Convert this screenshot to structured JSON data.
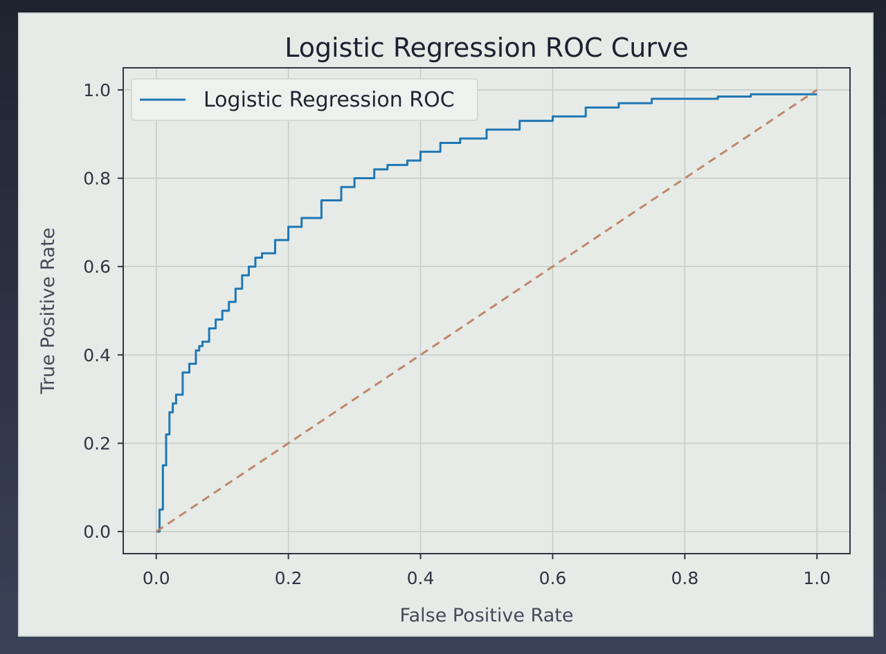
{
  "chart_data": {
    "type": "line",
    "title": "Logistic Regression ROC Curve",
    "xlabel": "False Positive Rate",
    "ylabel": "True Positive Rate",
    "xlim": [
      -0.05,
      1.05
    ],
    "ylim": [
      -0.05,
      1.05
    ],
    "grid": true,
    "legend_position": "top-left",
    "xticks": [
      "0.0",
      "0.2",
      "0.4",
      "0.6",
      "0.8",
      "1.0"
    ],
    "yticks": [
      "0.0",
      "0.2",
      "0.4",
      "0.6",
      "0.8",
      "1.0"
    ],
    "series": [
      {
        "name": "Logistic Regression ROC",
        "style": "solid",
        "color": "#1f77b4",
        "x": [
          0.0,
          0.005,
          0.01,
          0.015,
          0.02,
          0.025,
          0.03,
          0.04,
          0.05,
          0.06,
          0.065,
          0.07,
          0.08,
          0.09,
          0.1,
          0.11,
          0.12,
          0.13,
          0.14,
          0.15,
          0.16,
          0.18,
          0.2,
          0.22,
          0.25,
          0.28,
          0.3,
          0.33,
          0.35,
          0.38,
          0.4,
          0.43,
          0.46,
          0.5,
          0.55,
          0.6,
          0.65,
          0.7,
          0.75,
          0.8,
          0.85,
          0.9,
          0.95,
          1.0
        ],
        "y": [
          0.0,
          0.05,
          0.15,
          0.22,
          0.27,
          0.29,
          0.31,
          0.36,
          0.38,
          0.41,
          0.42,
          0.43,
          0.46,
          0.48,
          0.5,
          0.52,
          0.55,
          0.58,
          0.6,
          0.62,
          0.63,
          0.66,
          0.69,
          0.71,
          0.75,
          0.78,
          0.8,
          0.82,
          0.83,
          0.84,
          0.86,
          0.88,
          0.89,
          0.91,
          0.93,
          0.94,
          0.96,
          0.97,
          0.98,
          0.98,
          0.985,
          0.99,
          0.99,
          0.99
        ]
      },
      {
        "name": "",
        "style": "dashed",
        "color": "#c0866a",
        "x": [
          0.0,
          1.0
        ],
        "y": [
          0.0,
          1.0
        ]
      }
    ]
  }
}
